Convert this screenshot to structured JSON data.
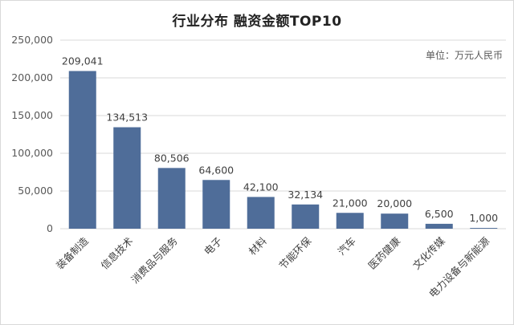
{
  "chart_data": {
    "type": "bar",
    "title": "行业分布 融资金额TOP10",
    "unit_note": "单位：万元人民币",
    "categories": [
      "装备制造",
      "信息技术",
      "消费品与服务",
      "电子",
      "材料",
      "节能环保",
      "汽车",
      "医药健康",
      "文化传媒",
      "电力设备与新能源"
    ],
    "values": [
      209041,
      134513,
      80506,
      64600,
      42100,
      32134,
      21000,
      20000,
      6500,
      1000
    ],
    "data_labels": [
      "209,041",
      "134,513",
      "80,506",
      "64,600",
      "42,100",
      "32,134",
      "21,000",
      "20,000",
      "6,500",
      "1,000"
    ],
    "y_ticks": [
      "0",
      "50,000",
      "100,000",
      "150,000",
      "200,000",
      "250,000"
    ],
    "ylim": [
      0,
      250000
    ],
    "grid": true,
    "legend": "none",
    "bar_color": "#4f6d99",
    "grid_color": "#d9d9d9"
  }
}
